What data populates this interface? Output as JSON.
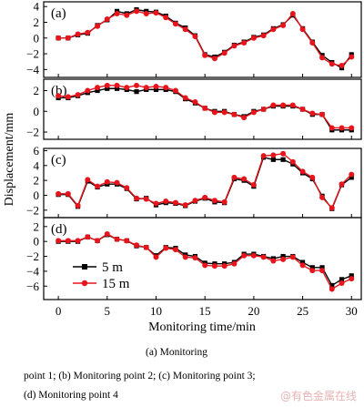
{
  "chart_data": {
    "type": "line",
    "x_values": [
      0,
      1,
      2,
      3,
      4,
      5,
      6,
      7,
      8,
      9,
      10,
      11,
      12,
      13,
      14,
      15,
      16,
      17,
      18,
      19,
      20,
      21,
      22,
      23,
      24,
      25,
      26,
      27,
      28,
      29,
      30
    ],
    "xlabel": "Monitoring time/min",
    "ylabel": "Displacement/mm",
    "xlim": [
      -1.5,
      31
    ],
    "xticks": [
      0,
      5,
      10,
      15,
      20,
      25,
      30
    ],
    "legend": {
      "panel": "d",
      "placement": "lower-left",
      "entries": [
        "5 m",
        "15 m"
      ]
    },
    "series_style": [
      {
        "name": "5 m",
        "color": "#000000",
        "marker": "square"
      },
      {
        "name": "15 m",
        "color": "#e8141c",
        "marker": "circle"
      }
    ],
    "panels": [
      {
        "id": "a",
        "label": "(a)",
        "ylim": [
          -5,
          4.6
        ],
        "yticks": [
          4,
          2,
          0,
          -2,
          -4
        ],
        "series": [
          {
            "name": "5 m",
            "values": [
              0,
              0,
              0.4,
              0.6,
              1.6,
              2.3,
              3.4,
              3.1,
              3.6,
              3.4,
              3.3,
              2.8,
              1.9,
              1.3,
              0.3,
              -2.1,
              -2.4,
              -1.8,
              -0.9,
              -0.5,
              0.1,
              0.4,
              1.2,
              1.7,
              2.9,
              1.2,
              -0.5,
              -2.2,
              -3.1,
              -3.8,
              -2.1
            ]
          },
          {
            "name": "15 m",
            "values": [
              0,
              0,
              0.5,
              0.7,
              1.5,
              2.4,
              3.1,
              2.9,
              3.4,
              3.1,
              3.2,
              2.6,
              1.8,
              1.1,
              0.2,
              -2.2,
              -2.6,
              -1.9,
              -1.0,
              -0.6,
              0.0,
              0.3,
              1.1,
              1.6,
              3.1,
              1.1,
              -0.6,
              -2.5,
              -3.3,
              -3.5,
              -2.4
            ]
          }
        ]
      },
      {
        "id": "b",
        "label": "(b)",
        "ylim": [
          -2.7,
          3.1
        ],
        "yticks": [
          2,
          0,
          -2
        ],
        "series": [
          {
            "name": "5 m",
            "values": [
              1.3,
              1.3,
              1.5,
              1.8,
              2.0,
              2.2,
              2.2,
              2.1,
              1.9,
              2.1,
              2.1,
              2.1,
              1.9,
              1.2,
              0.8,
              0.3,
              0,
              0,
              -0.3,
              -0.5,
              0,
              0.2,
              0.5,
              0.5,
              0.5,
              0.2,
              -0.3,
              -0.3,
              -1.8,
              -1.8,
              -1.8
            ]
          },
          {
            "name": "15 m",
            "values": [
              1.5,
              1.4,
              1.6,
              2.0,
              2.3,
              2.5,
              2.5,
              2.3,
              2.5,
              2.3,
              2.4,
              2.3,
              2.0,
              1.3,
              0.9,
              0.3,
              -0.1,
              -0.1,
              -0.3,
              -0.6,
              -0.1,
              0.2,
              0.6,
              0.6,
              0.6,
              0.2,
              -0.2,
              -0.3,
              -1.6,
              -1.6,
              -1.6
            ]
          }
        ]
      },
      {
        "id": "c",
        "label": "(c)",
        "ylim": [
          -3.0,
          6.3
        ],
        "yticks": [
          6,
          4,
          2,
          0,
          -2
        ],
        "series": [
          {
            "name": "5 m",
            "values": [
              0.1,
              0.1,
              -1.5,
              1.9,
              1.1,
              1.5,
              1.5,
              0.9,
              -0.5,
              -0.4,
              -1.3,
              -1.0,
              -1.1,
              -1.4,
              -0.8,
              -0.4,
              -0.9,
              -1.0,
              2.2,
              2.0,
              1.2,
              5.1,
              4.8,
              4.8,
              4.2,
              3.0,
              2.2,
              -0.1,
              -1.8,
              1.4,
              2.4
            ]
          },
          {
            "name": "15 m",
            "values": [
              0.2,
              0.2,
              -1.4,
              2.1,
              1.2,
              1.8,
              1.7,
              1.0,
              -0.4,
              -0.5,
              -1.1,
              -0.8,
              -1.0,
              -1.3,
              -0.7,
              -0.3,
              -0.7,
              -0.9,
              2.4,
              2.2,
              1.4,
              5.3,
              5.4,
              5.6,
              4.5,
              3.2,
              2.4,
              -0.3,
              -1.7,
              1.5,
              2.8
            ]
          }
        ]
      },
      {
        "id": "d",
        "label": "(d)",
        "ylim": [
          -7.8,
          3.2
        ],
        "yticks": [
          2,
          0,
          -2,
          -4,
          -6
        ],
        "series": [
          {
            "name": "5 m",
            "values": [
              0,
              0,
              0,
              0.6,
              0.1,
              0.9,
              0.3,
              0.1,
              -0.6,
              -0.8,
              -1.9,
              -0.8,
              -0.9,
              -1.8,
              -2.0,
              -2.9,
              -3.0,
              -3.0,
              -2.8,
              -1.7,
              -1.7,
              -2.0,
              -2.3,
              -2.0,
              -2.0,
              -2.8,
              -3.5,
              -3.5,
              -5.9,
              -5.1,
              -4.6
            ]
          },
          {
            "name": "15 m",
            "values": [
              0.1,
              0.1,
              0.1,
              0.6,
              0.1,
              1.0,
              0.3,
              0.1,
              -0.5,
              -0.8,
              -2.1,
              -0.9,
              -1.1,
              -2.1,
              -2.2,
              -3.2,
              -3.3,
              -3.3,
              -3.0,
              -1.9,
              -1.9,
              -2.1,
              -2.6,
              -2.4,
              -2.1,
              -3.2,
              -3.9,
              -3.9,
              -6.4,
              -5.6,
              -5.0
            ]
          }
        ]
      }
    ]
  },
  "caption": {
    "line1": "(a) Monitoring",
    "line2": "point 1; (b) Monitoring point 2; (c) Monitoring point 3;",
    "line3": "(d) Monitoring point 4"
  },
  "watermark": "@有色金属在线"
}
